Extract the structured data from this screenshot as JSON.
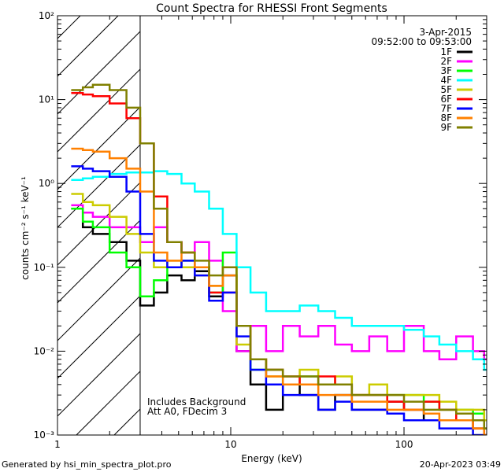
{
  "chart_data": {
    "type": "line",
    "title": "Count Spectra for RHESSI Front Segments",
    "xlabel": "Energy (keV)",
    "ylabel": "counts cm⁻² s⁻¹ keV⁻¹",
    "xscale": "log",
    "yscale": "log",
    "xlim": [
      1.0,
      300.0
    ],
    "ylim": [
      0.001,
      100.0
    ],
    "x_tick_labels": [
      "1",
      "10",
      "100"
    ],
    "y_tick_labels": [
      "10⁻³",
      "10⁻²",
      "10⁻¹",
      "10⁰",
      "10¹",
      "10²"
    ],
    "date": "3-Apr-2015",
    "time_range": "09:52:00 to 09:53:00",
    "legend_position": "top-right",
    "excluded_region_keV": [
      1.0,
      3.0
    ],
    "annotations": [
      "Includes Background",
      "Att A0, FDecim 3"
    ],
    "footer_left": "Generated by hsi_min_spectra_plot.pro",
    "footer_right": "20-Apr-2023 03:49",
    "series": [
      {
        "name": "1F",
        "color": "#000000",
        "x": [
          1.2,
          1.4,
          1.6,
          2.0,
          2.5,
          3.0,
          3.6,
          4.3,
          5.2,
          6.2,
          7.5,
          9,
          10.8,
          13,
          16,
          20,
          25,
          32,
          40,
          50,
          63,
          80,
          100,
          130,
          160,
          200,
          250,
          290
        ],
        "y": [
          0.5,
          0.3,
          0.25,
          0.2,
          0.12,
          0.035,
          0.05,
          0.08,
          0.07,
          0.09,
          0.045,
          0.08,
          0.01,
          0.004,
          0.002,
          0.004,
          0.003,
          0.002,
          0.003,
          0.002,
          0.002,
          0.0025,
          0.002,
          0.0015,
          0.0015,
          0.0015,
          0.0012,
          0.0012
        ]
      },
      {
        "name": "2F",
        "color": "#ff00ff",
        "x": [
          1.2,
          1.4,
          1.6,
          2.0,
          2.5,
          3.0,
          3.6,
          4.3,
          5.2,
          6.2,
          7.5,
          9,
          10.8,
          13,
          16,
          20,
          25,
          32,
          40,
          50,
          63,
          80,
          100,
          130,
          160,
          200,
          250,
          290
        ],
        "y": [
          0.55,
          0.45,
          0.4,
          0.3,
          0.3,
          0.2,
          0.3,
          0.2,
          0.15,
          0.2,
          0.12,
          0.03,
          0.01,
          0.02,
          0.01,
          0.02,
          0.015,
          0.02,
          0.012,
          0.01,
          0.015,
          0.01,
          0.02,
          0.01,
          0.008,
          0.015,
          0.01,
          0.008
        ]
      },
      {
        "name": "3F",
        "color": "#00ff00",
        "x": [
          1.2,
          1.4,
          1.6,
          2.0,
          2.5,
          3.0,
          3.6,
          4.3,
          5.2,
          6.2,
          7.5,
          9,
          10.8,
          13,
          16,
          20,
          25,
          32,
          40,
          50,
          63,
          80,
          100,
          130,
          160,
          200,
          250,
          290
        ],
        "y": [
          0.5,
          0.35,
          0.3,
          0.15,
          0.1,
          0.045,
          0.07,
          0.1,
          0.12,
          0.1,
          0.05,
          0.15,
          0.02,
          0.006,
          0.006,
          0.004,
          0.005,
          0.004,
          0.004,
          0.003,
          0.003,
          0.003,
          0.003,
          0.0025,
          0.002,
          0.002,
          0.0018,
          0.0015
        ]
      },
      {
        "name": "4F",
        "color": "#00ffff",
        "x": [
          1.2,
          1.4,
          1.6,
          2.0,
          2.5,
          3.0,
          3.6,
          4.3,
          5.2,
          6.2,
          7.5,
          9,
          10.8,
          13,
          16,
          20,
          25,
          32,
          40,
          50,
          63,
          80,
          100,
          130,
          160,
          200,
          250,
          290
        ],
        "y": [
          1.1,
          1.15,
          1.2,
          1.3,
          1.35,
          1.35,
          1.4,
          1.3,
          1.0,
          0.8,
          0.5,
          0.25,
          0.1,
          0.05,
          0.03,
          0.03,
          0.035,
          0.03,
          0.025,
          0.02,
          0.02,
          0.02,
          0.018,
          0.015,
          0.012,
          0.01,
          0.008,
          0.006
        ]
      },
      {
        "name": "5F",
        "color": "#cccc00",
        "x": [
          1.2,
          1.4,
          1.6,
          2.0,
          2.5,
          3.0,
          3.6,
          4.3,
          5.2,
          6.2,
          7.5,
          9,
          10.8,
          13,
          16,
          20,
          25,
          32,
          40,
          50,
          63,
          80,
          100,
          130,
          160,
          200,
          250,
          290
        ],
        "y": [
          0.75,
          0.6,
          0.55,
          0.4,
          0.25,
          0.15,
          0.1,
          0.12,
          0.1,
          0.08,
          0.06,
          0.1,
          0.012,
          0.008,
          0.005,
          0.004,
          0.006,
          0.004,
          0.005,
          0.003,
          0.004,
          0.003,
          0.003,
          0.003,
          0.0025,
          0.002,
          0.002,
          0.0015
        ]
      },
      {
        "name": "6F",
        "color": "#ff0000",
        "x": [
          1.2,
          1.4,
          1.6,
          2.0,
          2.5,
          3.0,
          3.6,
          4.3,
          5.2,
          6.2,
          7.5,
          9,
          10.8,
          13,
          16,
          20,
          25,
          32,
          40,
          50,
          63,
          80,
          100,
          130,
          160,
          200,
          250,
          290
        ],
        "y": [
          12.0,
          11.5,
          11.0,
          9.0,
          6.0,
          3.0,
          0.7,
          0.2,
          0.15,
          0.1,
          0.05,
          0.05,
          0.02,
          0.008,
          0.006,
          0.005,
          0.004,
          0.005,
          0.004,
          0.003,
          0.003,
          0.0025,
          0.002,
          0.0025,
          0.002,
          0.0015,
          0.0012,
          0.001
        ]
      },
      {
        "name": "7F",
        "color": "#0000ff",
        "x": [
          1.2,
          1.4,
          1.6,
          2.0,
          2.5,
          3.0,
          3.6,
          4.3,
          5.2,
          6.2,
          7.5,
          9,
          10.8,
          13,
          16,
          20,
          25,
          32,
          40,
          50,
          63,
          80,
          100,
          130,
          160,
          200,
          250,
          290
        ],
        "y": [
          1.6,
          1.5,
          1.4,
          1.2,
          0.8,
          0.25,
          0.12,
          0.1,
          0.12,
          0.08,
          0.04,
          0.05,
          0.015,
          0.006,
          0.004,
          0.003,
          0.003,
          0.002,
          0.0025,
          0.002,
          0.002,
          0.0018,
          0.0015,
          0.0015,
          0.0012,
          0.0012,
          0.001,
          0.001
        ]
      },
      {
        "name": "8F",
        "color": "#ff8000",
        "x": [
          1.2,
          1.4,
          1.6,
          2.0,
          2.5,
          3.0,
          3.6,
          4.3,
          5.2,
          6.2,
          7.5,
          9,
          10.8,
          13,
          16,
          20,
          25,
          32,
          40,
          50,
          63,
          80,
          100,
          130,
          160,
          200,
          250,
          290
        ],
        "y": [
          2.6,
          2.5,
          2.4,
          2.0,
          1.5,
          0.8,
          0.15,
          0.12,
          0.15,
          0.1,
          0.06,
          0.08,
          0.02,
          0.008,
          0.005,
          0.004,
          0.004,
          0.003,
          0.003,
          0.0025,
          0.0025,
          0.002,
          0.002,
          0.0018,
          0.0015,
          0.0015,
          0.0012,
          0.001
        ]
      },
      {
        "name": "9F",
        "color": "#808000",
        "x": [
          1.2,
          1.4,
          1.6,
          2.0,
          2.5,
          3.0,
          3.6,
          4.3,
          5.2,
          6.2,
          7.5,
          9,
          10.8,
          13,
          16,
          20,
          25,
          32,
          40,
          50,
          63,
          80,
          100,
          130,
          160,
          200,
          250,
          290
        ],
        "y": [
          13.0,
          14.0,
          15.0,
          13.0,
          8.0,
          3.0,
          0.5,
          0.2,
          0.15,
          0.12,
          0.08,
          0.1,
          0.02,
          0.008,
          0.006,
          0.005,
          0.005,
          0.004,
          0.004,
          0.003,
          0.003,
          0.003,
          0.0025,
          0.002,
          0.002,
          0.0018,
          0.0015,
          0.0012
        ]
      }
    ]
  }
}
